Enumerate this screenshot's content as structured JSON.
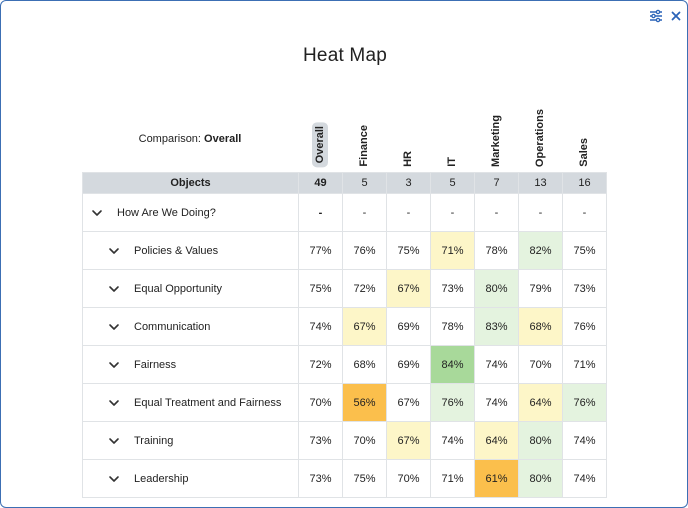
{
  "title": "Heat Map",
  "comparison": {
    "label": "Comparison:",
    "value": "Overall"
  },
  "icons": {
    "settings": "sliders-icon",
    "close": "close-icon",
    "expand": "chevron-down-icon"
  },
  "colors": {
    "green_light": "#e4f3df",
    "green_strong": "#a8d99a",
    "yellow_light": "#fdf6c8",
    "orange_strong": "#fbbf4c",
    "header_bg": "#d4d9de"
  },
  "table": {
    "objects_header": "Objects",
    "columns": [
      {
        "name": "Overall",
        "count": "49",
        "selected": true
      },
      {
        "name": "Finance",
        "count": "5"
      },
      {
        "name": "HR",
        "count": "3"
      },
      {
        "name": "IT",
        "count": "5"
      },
      {
        "name": "Marketing",
        "count": "7"
      },
      {
        "name": "Operations",
        "count": "13"
      },
      {
        "name": "Sales",
        "count": "16"
      }
    ],
    "rows": [
      {
        "label": "How Are We Doing?",
        "level": 0,
        "values": [
          "-",
          "-",
          "-",
          "-",
          "-",
          "-",
          "-"
        ],
        "heat": [
          "",
          "",
          "",
          "",
          "",
          "",
          ""
        ]
      },
      {
        "label": "Policies & Values",
        "level": 1,
        "values": [
          "77%",
          "76%",
          "75%",
          "71%",
          "78%",
          "82%",
          "75%"
        ],
        "heat": [
          "",
          "",
          "",
          "yellow_light",
          "",
          "green_light",
          ""
        ]
      },
      {
        "label": "Equal Opportunity",
        "level": 1,
        "values": [
          "75%",
          "72%",
          "67%",
          "73%",
          "80%",
          "79%",
          "73%"
        ],
        "heat": [
          "",
          "",
          "yellow_light",
          "",
          "green_light",
          "",
          ""
        ]
      },
      {
        "label": "Communication",
        "level": 1,
        "values": [
          "74%",
          "67%",
          "69%",
          "78%",
          "83%",
          "68%",
          "76%"
        ],
        "heat": [
          "",
          "yellow_light",
          "",
          "",
          "green_light",
          "yellow_light",
          ""
        ]
      },
      {
        "label": "Fairness",
        "level": 1,
        "values": [
          "72%",
          "68%",
          "69%",
          "84%",
          "74%",
          "70%",
          "71%"
        ],
        "heat": [
          "",
          "",
          "",
          "green_strong",
          "",
          "",
          ""
        ]
      },
      {
        "label": "Equal Treatment and Fairness",
        "level": 1,
        "values": [
          "70%",
          "56%",
          "67%",
          "76%",
          "74%",
          "64%",
          "76%"
        ],
        "heat": [
          "",
          "orange_strong",
          "",
          "green_light",
          "",
          "yellow_light",
          "green_light"
        ]
      },
      {
        "label": "Training",
        "level": 1,
        "values": [
          "73%",
          "70%",
          "67%",
          "74%",
          "64%",
          "80%",
          "74%"
        ],
        "heat": [
          "",
          "",
          "yellow_light",
          "",
          "yellow_light",
          "green_light",
          ""
        ]
      },
      {
        "label": "Leadership",
        "level": 1,
        "values": [
          "73%",
          "75%",
          "70%",
          "71%",
          "61%",
          "80%",
          "74%"
        ],
        "heat": [
          "",
          "",
          "",
          "",
          "orange_strong",
          "green_light",
          ""
        ]
      }
    ]
  }
}
